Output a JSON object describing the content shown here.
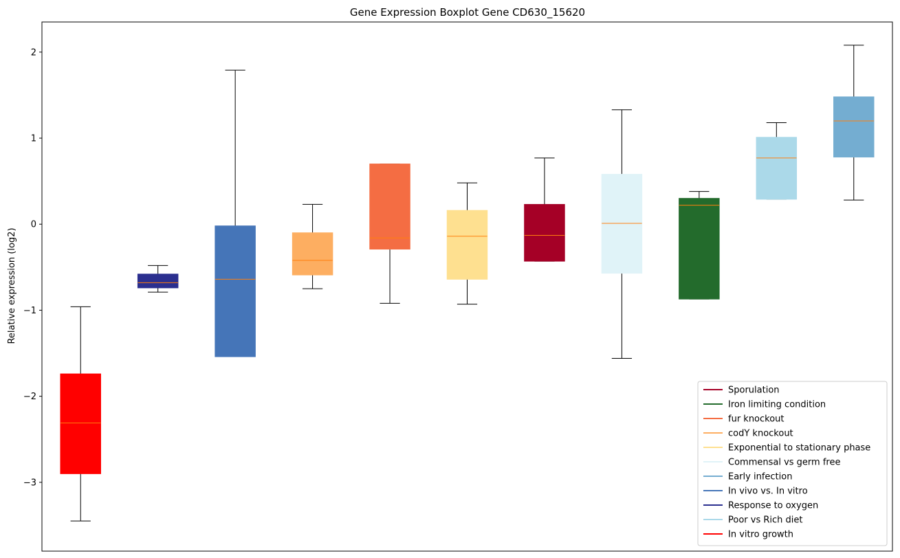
{
  "chart_data": {
    "type": "boxplot",
    "title": "Gene Expression Boxplot Gene CD630_15620",
    "xlabel": "",
    "ylabel": "Relative expression (log2)",
    "ylim": [
      -3.8,
      2.35
    ],
    "yticks": [
      -3,
      -2,
      -1,
      0,
      1,
      2
    ],
    "ytick_labels": [
      "−3",
      "−2",
      "−1",
      "0",
      "1",
      "2"
    ],
    "median_color": "#ff7f0e",
    "whisker_color": "#000000",
    "legend_position": "lower-right",
    "boxes": [
      {
        "name": "In vitro growth",
        "color": "#ff0000",
        "whisker_low": -3.45,
        "q1": -2.9,
        "median": -2.31,
        "q3": -1.74,
        "whisker_high": -0.96
      },
      {
        "name": "Response to oxygen",
        "color": "#2b2f8f",
        "whisker_low": -0.79,
        "q1": -0.74,
        "median": -0.68,
        "q3": -0.58,
        "whisker_high": -0.48
      },
      {
        "name": "In vivo vs. In vitro",
        "color": "#4575b8",
        "whisker_low": -1.54,
        "q1": -1.54,
        "median": -0.64,
        "q3": -0.02,
        "whisker_high": 1.79
      },
      {
        "name": "codY knockout",
        "color": "#fdae61",
        "whisker_low": -0.75,
        "q1": -0.59,
        "median": -0.42,
        "q3": -0.1,
        "whisker_high": 0.23
      },
      {
        "name": "fur knockout",
        "color": "#f46d43",
        "whisker_low": -0.92,
        "q1": -0.29,
        "median": -0.16,
        "q3": 0.7,
        "whisker_high": 0.7
      },
      {
        "name": "Exponential to stationary phase",
        "color": "#fee090",
        "whisker_low": -0.93,
        "q1": -0.64,
        "median": -0.14,
        "q3": 0.16,
        "whisker_high": 0.48
      },
      {
        "name": "Sporulation",
        "color": "#a50026",
        "whisker_low": -0.43,
        "q1": -0.43,
        "median": -0.13,
        "q3": 0.23,
        "whisker_high": 0.77
      },
      {
        "name": "Commensal vs germ free",
        "color": "#e0f3f8",
        "whisker_low": -1.56,
        "q1": -0.57,
        "median": 0.01,
        "q3": 0.58,
        "whisker_high": 1.33
      },
      {
        "name": "Iron limiting condition",
        "color": "#236b2c",
        "whisker_low": -0.87,
        "q1": -0.87,
        "median": 0.22,
        "q3": 0.3,
        "whisker_high": 0.38
      },
      {
        "name": "Poor vs Rich diet",
        "color": "#abd9e9",
        "whisker_low": 0.29,
        "q1": 0.29,
        "median": 0.77,
        "q3": 1.01,
        "whisker_high": 1.18
      },
      {
        "name": "Early infection",
        "color": "#74add1",
        "whisker_low": 0.28,
        "q1": 0.78,
        "median": 1.2,
        "q3": 1.48,
        "whisker_high": 2.08
      }
    ],
    "legend": [
      {
        "label": "Sporulation",
        "color": "#a50026"
      },
      {
        "label": "Iron limiting condition",
        "color": "#236b2c"
      },
      {
        "label": "fur knockout",
        "color": "#f46d43"
      },
      {
        "label": "codY knockout",
        "color": "#fdae61"
      },
      {
        "label": "Exponential to stationary phase",
        "color": "#fee090"
      },
      {
        "label": "Commensal vs germ free",
        "color": "#e0f3f8"
      },
      {
        "label": "Early infection",
        "color": "#74add1"
      },
      {
        "label": "In vivo vs. In vitro",
        "color": "#4575b8"
      },
      {
        "label": "Response to oxygen",
        "color": "#2b2f8f"
      },
      {
        "label": "Poor vs Rich diet",
        "color": "#abd9e9"
      },
      {
        "label": "In vitro growth",
        "color": "#ff0000"
      }
    ]
  }
}
